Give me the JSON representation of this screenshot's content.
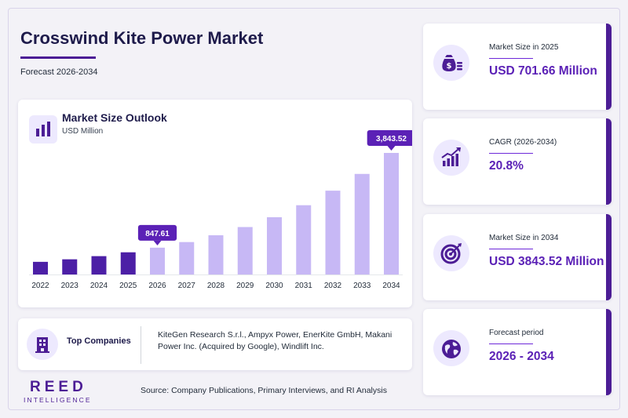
{
  "header": {
    "title": "Crosswind Kite Power Market",
    "subtitle": "Forecast 2026-2034"
  },
  "chart_card": {
    "title": "Market Size Outlook",
    "unit": "USD Million",
    "icon": "bar-chart-icon"
  },
  "chart_data": {
    "type": "bar",
    "title": "Market Size Outlook",
    "ylabel": "USD Million",
    "categories": [
      "2022",
      "2023",
      "2024",
      "2025",
      "2026",
      "2027",
      "2028",
      "2029",
      "2030",
      "2031",
      "2032",
      "2033",
      "2034"
    ],
    "values": [
      400,
      480,
      580,
      701.66,
      847.61,
      1025,
      1240,
      1500,
      1810,
      2190,
      2650,
      3180,
      3843.52
    ],
    "ylim": [
      0,
      3843.52
    ],
    "grid": false,
    "historical_color": "#4c1fa6",
    "forecast_color": "#c7b8f5",
    "annotations": [
      {
        "category": "2026",
        "label": "847.61"
      },
      {
        "category": "2034",
        "label": "3,843.52"
      }
    ]
  },
  "companies": {
    "label": "Top Companies",
    "icon": "building-icon",
    "text": "KiteGen Research S.r.l., Ampyx Power, EnerKite GmbH, Makani Power Inc. (Acquired by Google), Windlift Inc."
  },
  "stats": [
    {
      "label": "Market Size in 2025",
      "value": "USD 701.66 Million",
      "icon": "money-bag-icon"
    },
    {
      "label": "CAGR (2026-2034)",
      "value": "20.8%",
      "icon": "growth-chart-icon"
    },
    {
      "label": "Market Size in 2034",
      "value": "USD 3843.52 Million",
      "icon": "target-icon"
    },
    {
      "label": "Forecast period",
      "value": "2026 - 2034",
      "icon": "globe-icon"
    }
  ],
  "brand": {
    "name": "REED",
    "tagline": "INTELLIGENCE"
  },
  "source": "Source: Company Publications, Primary Interviews, and RI Analysis",
  "colors": {
    "accent": "#4c1d95",
    "value": "#5b21b6",
    "icon_bg": "#ede9fe"
  }
}
